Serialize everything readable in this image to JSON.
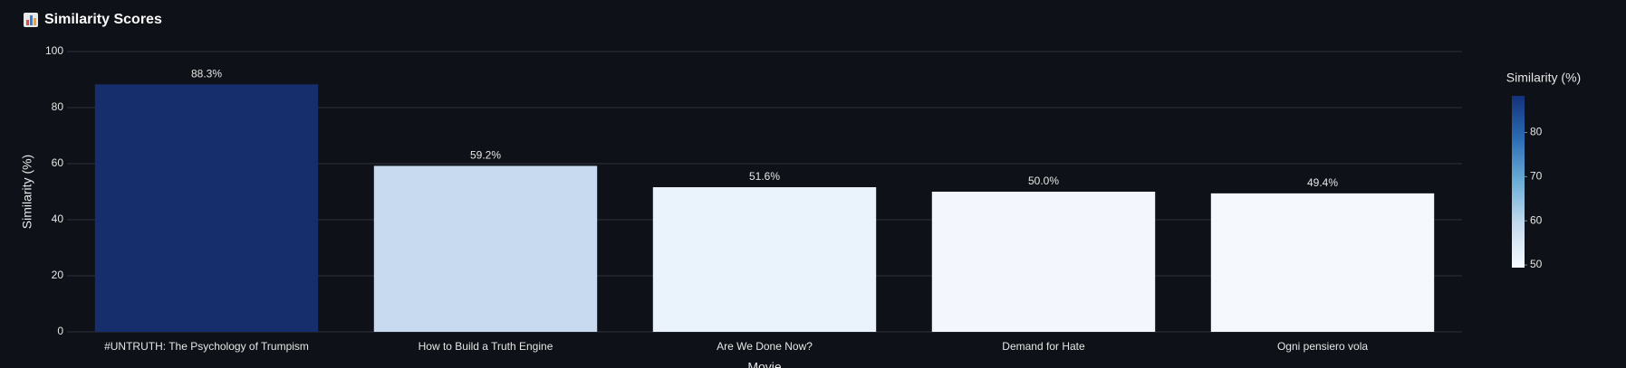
{
  "chart_data": {
    "type": "bar",
    "title": "Similarity Scores",
    "x_label": "Movie",
    "y_label": "Similarity (%)",
    "categories": [
      "#UNTRUTH: The Psychology of Trumpism",
      "How to Build a Truth Engine",
      "Are We Done Now?",
      "Demand for Hate",
      "Ogni pensiero vola"
    ],
    "values": [
      88.3,
      59.2,
      51.6,
      50.0,
      49.4
    ],
    "value_labels": [
      "88.3%",
      "59.2%",
      "51.6%",
      "50.0%",
      "49.4%"
    ],
    "colors": [
      "#172e6c",
      "#c8daef",
      "#eaf2fb",
      "#f3f7fd",
      "#f5f8fd"
    ],
    "ylim": [
      0,
      100
    ],
    "yticks": [
      0,
      20,
      40,
      60,
      80,
      100
    ],
    "grid": true,
    "colorbar": {
      "title": "Similarity (%)",
      "range": [
        49.4,
        88.3
      ],
      "ticks": [
        50,
        60,
        70,
        80
      ],
      "colorscale": [
        "#f7fbff",
        "#c6dbef",
        "#6baed6",
        "#2b6cb4",
        "#13317a"
      ]
    }
  }
}
